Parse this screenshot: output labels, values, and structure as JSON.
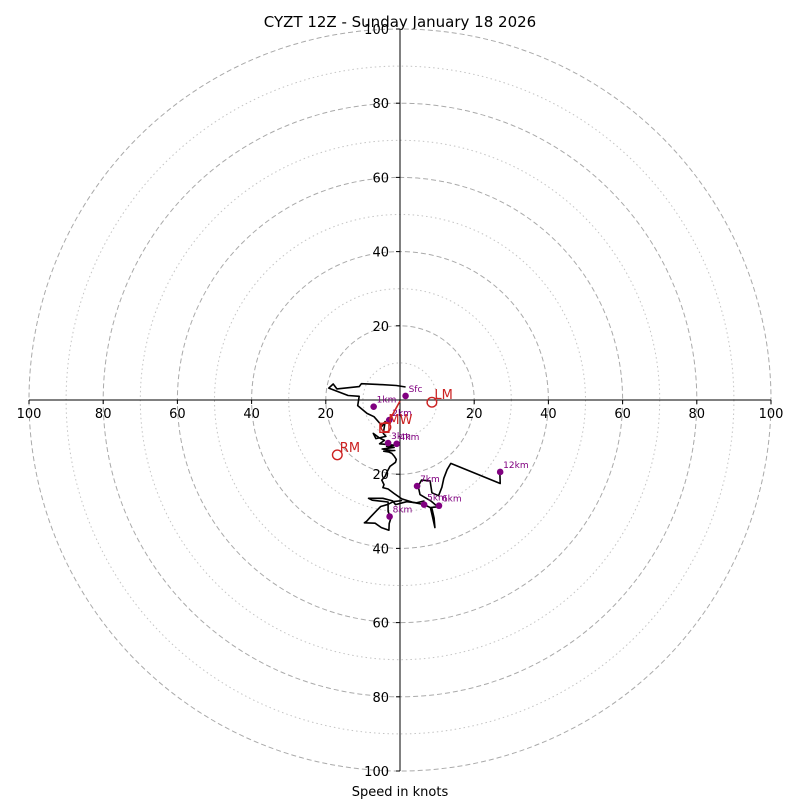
{
  "chart_data": {
    "type": "hodograph",
    "title": "CYZT 12Z - Sunday January 18 2026",
    "xlabel": "Speed in knots",
    "max_speed": 100,
    "major_rings": [
      20,
      40,
      60,
      80,
      100
    ],
    "minor_rings": [
      10,
      30,
      50,
      70,
      90
    ],
    "x_tick_labels": [
      "100",
      "80",
      "60",
      "40",
      "20",
      "20",
      "40",
      "60",
      "80",
      "100"
    ],
    "y_tick_labels": [
      "100",
      "80",
      "60",
      "40",
      "20",
      "20",
      "40",
      "60",
      "80",
      "100"
    ],
    "colors": {
      "profile": "#000000",
      "points": "#800080",
      "motion": "#cc2222",
      "grid": "#aaaaaa",
      "axis": "#000000"
    },
    "profile": [
      [
        1.5,
        3.5
      ],
      [
        -1,
        3.9
      ],
      [
        -6,
        4.2
      ],
      [
        -10.4,
        4.4
      ],
      [
        -11,
        3.6
      ],
      [
        -17,
        3
      ],
      [
        -18,
        4.3
      ],
      [
        -19.2,
        3.2
      ],
      [
        -14,
        1.2
      ],
      [
        -11,
        1
      ],
      [
        -11.4,
        -1.5
      ],
      [
        -8.9,
        -3.6
      ],
      [
        -7,
        -4.5
      ],
      [
        -4.8,
        -7
      ],
      [
        -4,
        -5.8
      ],
      [
        -4.5,
        -9
      ],
      [
        -3.8,
        -9.8
      ],
      [
        -6.5,
        -10.4
      ],
      [
        -7.2,
        -9
      ],
      [
        -5.6,
        -10.2
      ],
      [
        -4.2,
        -10.9
      ],
      [
        -5.5,
        -11.8
      ],
      [
        -1.2,
        -12.2
      ],
      [
        -3.6,
        -12.5
      ],
      [
        -1.6,
        -12.8
      ],
      [
        -4.8,
        -13.2
      ],
      [
        -2.2,
        -13.6
      ],
      [
        -1.4,
        -13.6
      ],
      [
        -4.4,
        -13.8
      ],
      [
        -3.1,
        -14
      ],
      [
        -2.2,
        -14.4
      ],
      [
        -1.5,
        -15.2
      ],
      [
        -1,
        -16
      ],
      [
        -1.2,
        -16.8
      ],
      [
        -2.7,
        -17.9
      ],
      [
        -3.5,
        -19.4
      ],
      [
        -4,
        -20.5
      ],
      [
        -4.9,
        -21.6
      ],
      [
        -4.3,
        -22.8
      ],
      [
        -4.6,
        -23.6
      ],
      [
        -3.2,
        -24
      ],
      [
        -1.6,
        -25.2
      ],
      [
        0.4,
        -26.6
      ],
      [
        3.5,
        -27.6
      ],
      [
        6.5,
        -28.2
      ],
      [
        8.6,
        -29.2
      ],
      [
        9.2,
        -31.8
      ],
      [
        9.4,
        -34.4
      ],
      [
        8.8,
        -31.6
      ],
      [
        8.2,
        -29
      ],
      [
        10.2,
        -28.8
      ],
      [
        8.3,
        -27.2
      ],
      [
        5.4,
        -25.5
      ],
      [
        4.9,
        -23.2
      ],
      [
        5.8,
        -21.6
      ],
      [
        8.1,
        -21.8
      ],
      [
        8.6,
        -25
      ],
      [
        10.4,
        -25.8
      ],
      [
        11.3,
        -23.5
      ],
      [
        11.8,
        -21.1
      ],
      [
        12.7,
        -18.8
      ],
      [
        13.7,
        -17.1
      ],
      [
        27,
        -22.5
      ],
      [
        26.9,
        -19
      ],
      [
        26.8,
        -19.4
      ]
    ],
    "profile_tail": [
      [
        6.6,
        -27.2
      ],
      [
        4.5,
        -27.7
      ],
      [
        1.8,
        -27.4
      ],
      [
        -1.2,
        -28.2
      ],
      [
        -2,
        -27.2
      ],
      [
        -4.6,
        -26.5
      ],
      [
        -8.1,
        -26.5
      ],
      [
        -8.5,
        -26.5
      ],
      [
        -7.5,
        -27
      ],
      [
        -3.2,
        -27.5
      ],
      [
        -3.2,
        -30
      ],
      [
        -2.5,
        -32
      ],
      [
        -2.9,
        -33.3
      ],
      [
        -3,
        -35.1
      ],
      [
        -5,
        -34.4
      ],
      [
        -6.7,
        -33.2
      ],
      [
        -9.6,
        -33.1
      ],
      [
        -9,
        -32.7
      ],
      [
        -8,
        -31.6
      ],
      [
        -6.4,
        -29.9
      ],
      [
        -5.2,
        -28.7
      ],
      [
        -3.2,
        -28.1
      ],
      [
        -1.8,
        -27.4
      ],
      [
        0.6,
        -27.1
      ]
    ],
    "height_points": [
      {
        "label": "Sfc",
        "u": 1.5,
        "v": 1.1
      },
      {
        "label": "1km",
        "u": -7.1,
        "v": -1.8
      },
      {
        "label": "2km",
        "u": -2.9,
        "v": -5.4
      },
      {
        "label": "3km",
        "u": -3.2,
        "v": -11.6
      },
      {
        "label": "4km",
        "u": -0.9,
        "v": -11.8
      },
      {
        "label": "5km",
        "u": 6.5,
        "v": -28.2
      },
      {
        "label": "6km",
        "u": 10.5,
        "v": -28.5
      },
      {
        "label": "7km",
        "u": 4.6,
        "v": -23.2
      },
      {
        "label": "8km",
        "u": -2.8,
        "v": -31.4
      },
      {
        "label": "12km",
        "u": 27,
        "v": -19.4
      }
    ],
    "storm_motion": [
      {
        "label": "LM",
        "u": 8.6,
        "v": -0.6
      },
      {
        "label": "MW",
        "u": -3.8,
        "v": -7.3
      },
      {
        "label": "RM",
        "u": -16.9,
        "v": -14.8
      }
    ],
    "bunkers_marker": {
      "u": -4.2,
      "v": -7.5
    },
    "shear_vector": {
      "from_u": -2.8,
      "from_v": -5.4,
      "to_u": 0.0,
      "to_v": -0.3
    }
  }
}
